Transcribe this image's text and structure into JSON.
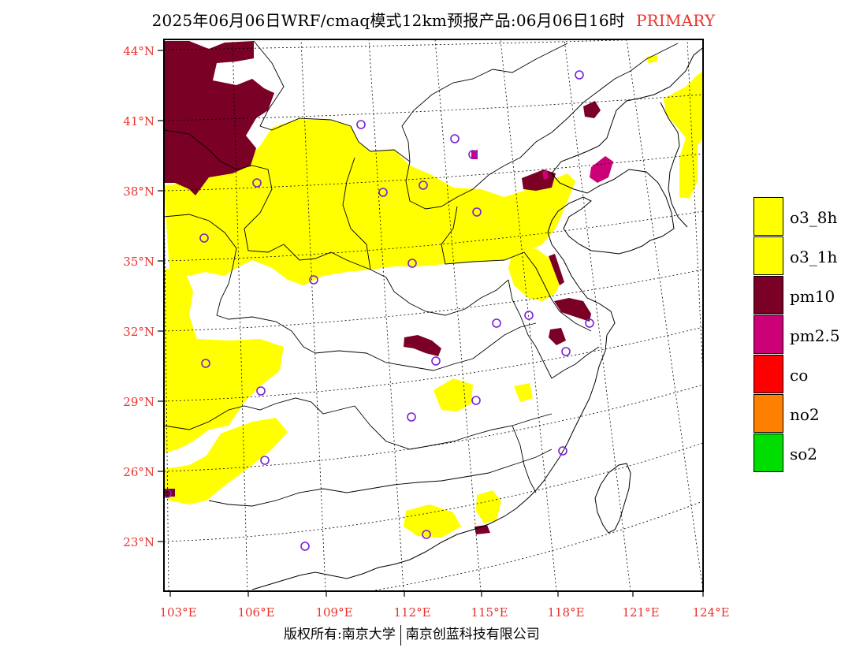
{
  "header": {
    "title": "2025年06月06日WRF/cmaq模式12km预报产品:06月06日16时",
    "tag": "PRIMARY"
  },
  "map": {
    "lat_labels": [
      "44°N",
      "41°N",
      "38°N",
      "35°N",
      "32°N",
      "29°N",
      "26°N",
      "23°N"
    ],
    "lon_labels": [
      "103°E",
      "106°E",
      "109°E",
      "112°E",
      "115°E",
      "118°E",
      "121°E",
      "124°E"
    ],
    "colors": {
      "o3_8h": "#ffff00",
      "o3_1h": "#ffff00",
      "pm10": "#7a0026",
      "pm25": "#cc0077",
      "station": "#7a1fd6",
      "label": "#e8332d"
    }
  },
  "legend": {
    "items": [
      {
        "label": "o3_8h",
        "color": "#ffff00"
      },
      {
        "label": "o3_1h",
        "color": "#ffff00"
      },
      {
        "label": "pm10",
        "color": "#7a0026"
      },
      {
        "label": "pm2.5",
        "color": "#cc0077"
      },
      {
        "label": "co",
        "color": "#ff0000"
      },
      {
        "label": "no2",
        "color": "#ff7f00"
      },
      {
        "label": "so2",
        "color": "#00dd00"
      }
    ]
  },
  "footer": {
    "copyright_left": "版权所有:南京大学",
    "copyright_right": "南京创蓝科技有限公司"
  }
}
